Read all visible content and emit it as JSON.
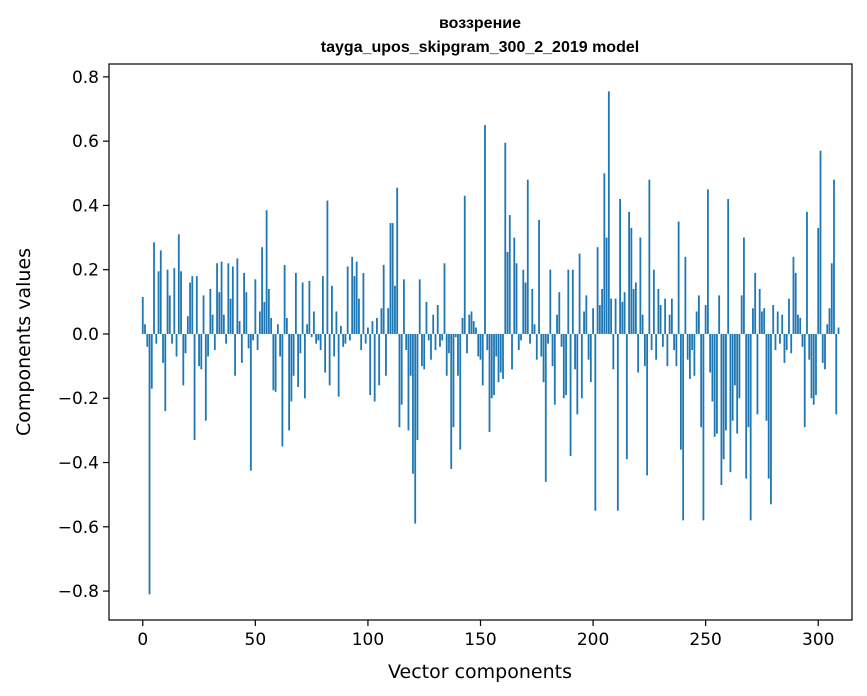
{
  "chart_data": {
    "type": "bar",
    "title": "воззрение",
    "subtitle": "tayga_upos_skipgram_300_2_2019 model",
    "xlabel": "Vector components",
    "ylabel": "Components values",
    "xlim": [
      -15,
      315
    ],
    "ylim": [
      -0.89,
      0.84
    ],
    "xticks": [
      0,
      50,
      100,
      150,
      200,
      250,
      300
    ],
    "xtick_labels": [
      "0",
      "50",
      "100",
      "150",
      "200",
      "250",
      "300"
    ],
    "yticks": [
      -0.8,
      -0.6,
      -0.4,
      -0.2,
      0.0,
      0.2,
      0.4,
      0.6,
      0.8
    ],
    "ytick_labels": [
      "−0.8",
      "−0.6",
      "−0.4",
      "−0.2",
      "0.0",
      "0.2",
      "0.4",
      "0.6",
      "0.8"
    ],
    "bar_color": "#1f77b4",
    "grid": false,
    "values": [
      0.115,
      0.03,
      -0.04,
      -0.81,
      -0.17,
      0.285,
      -0.03,
      0.195,
      0.26,
      -0.09,
      -0.24,
      0.2,
      0.12,
      -0.03,
      0.205,
      -0.07,
      0.31,
      0.195,
      -0.16,
      -0.06,
      0.055,
      0.16,
      0.18,
      -0.33,
      0.18,
      -0.1,
      -0.11,
      0.12,
      -0.27,
      -0.07,
      0.14,
      0.06,
      -0.05,
      0.22,
      0.13,
      0.225,
      0.06,
      -0.03,
      0.22,
      0.11,
      0.21,
      -0.13,
      0.235,
      0.04,
      -0.09,
      0.19,
      0.13,
      -0.045,
      -0.425,
      -0.02,
      0.17,
      -0.05,
      0.07,
      0.27,
      0.1,
      0.385,
      0.14,
      0.05,
      -0.175,
      -0.18,
      0.03,
      -0.07,
      -0.35,
      0.215,
      0.05,
      -0.3,
      -0.21,
      -0.13,
      0.19,
      -0.165,
      -0.06,
      0.16,
      -0.2,
      0.03,
      0.165,
      -0.01,
      0.07,
      -0.03,
      -0.02,
      -0.05,
      0.18,
      -0.12,
      0.415,
      -0.16,
      0.15,
      -0.07,
      0.07,
      -0.195,
      0.025,
      -0.04,
      -0.03,
      0.21,
      -0.02,
      0.24,
      0.18,
      0.225,
      0.11,
      -0.05,
      0.19,
      -0.03,
      0.02,
      -0.19,
      0.04,
      -0.21,
      0.05,
      -0.16,
      0.08,
      0.215,
      -0.13,
      0.08,
      0.345,
      0.345,
      0.15,
      0.455,
      -0.29,
      -0.22,
      0.17,
      -0.05,
      -0.3,
      -0.13,
      -0.435,
      -0.59,
      -0.33,
      0.17,
      -0.1,
      -0.11,
      0.1,
      -0.02,
      -0.08,
      0.06,
      -0.05,
      0.09,
      -0.04,
      -0.02,
      0.22,
      -0.13,
      -0.06,
      -0.42,
      -0.29,
      -0.01,
      -0.13,
      -0.36,
      0.05,
      0.43,
      -0.06,
      0.06,
      0.07,
      0.04,
      0.02,
      -0.07,
      -0.08,
      -0.16,
      0.65,
      -0.05,
      -0.305,
      -0.2,
      -0.19,
      -0.07,
      -0.15,
      -0.12,
      -0.14,
      0.595,
      0.255,
      0.37,
      -0.11,
      0.3,
      0.22,
      -0.05,
      -0.02,
      0.2,
      0.16,
      0.48,
      -0.03,
      0.14,
      0.03,
      -0.08,
      0.355,
      -0.07,
      -0.15,
      -0.46,
      -0.03,
      0.2,
      -0.1,
      -0.22,
      0.06,
      0.13,
      -0.04,
      -0.2,
      -0.19,
      0.2,
      -0.38,
      0.2,
      -0.11,
      -0.25,
      0.25,
      -0.2,
      0.07,
      0.12,
      -0.08,
      -0.15,
      0.08,
      -0.55,
      0.27,
      0.09,
      0.14,
      0.5,
      0.3,
      0.755,
      0.11,
      -0.11,
      0.11,
      -0.55,
      0.42,
      0.1,
      0.13,
      -0.39,
      0.38,
      0.33,
      0.14,
      0.16,
      -0.12,
      0.3,
      0.06,
      -0.1,
      -0.44,
      0.48,
      -0.05,
      0.2,
      -0.08,
      0.14,
      0.09,
      -0.04,
      0.11,
      -0.1,
      0.06,
      0.11,
      -0.05,
      -0.1,
      0.35,
      -0.36,
      -0.58,
      0.24,
      -0.08,
      -0.14,
      -0.05,
      -0.13,
      0.07,
      0.12,
      -0.29,
      -0.58,
      0.09,
      0.45,
      -0.12,
      -0.21,
      -0.32,
      -0.31,
      0.12,
      -0.47,
      -0.39,
      -0.3,
      0.42,
      -0.43,
      -0.27,
      -0.16,
      -0.31,
      -0.2,
      0.12,
      0.3,
      -0.45,
      -0.29,
      -0.58,
      0.08,
      0.19,
      -0.25,
      0.14,
      0.07,
      0.08,
      -0.27,
      -0.45,
      -0.53,
      0.09,
      -0.05,
      0.07,
      -0.03,
      0.06,
      -0.09,
      -0.05,
      0.11,
      -0.06,
      0.24,
      0.19,
      0.06,
      0.05,
      -0.04,
      -0.29,
      0.38,
      -0.08,
      -0.2,
      -0.22,
      -0.19,
      0.33,
      0.57,
      -0.09,
      -0.11,
      0.03,
      0.08,
      0.22,
      0.48,
      -0.25,
      0.02
    ]
  }
}
